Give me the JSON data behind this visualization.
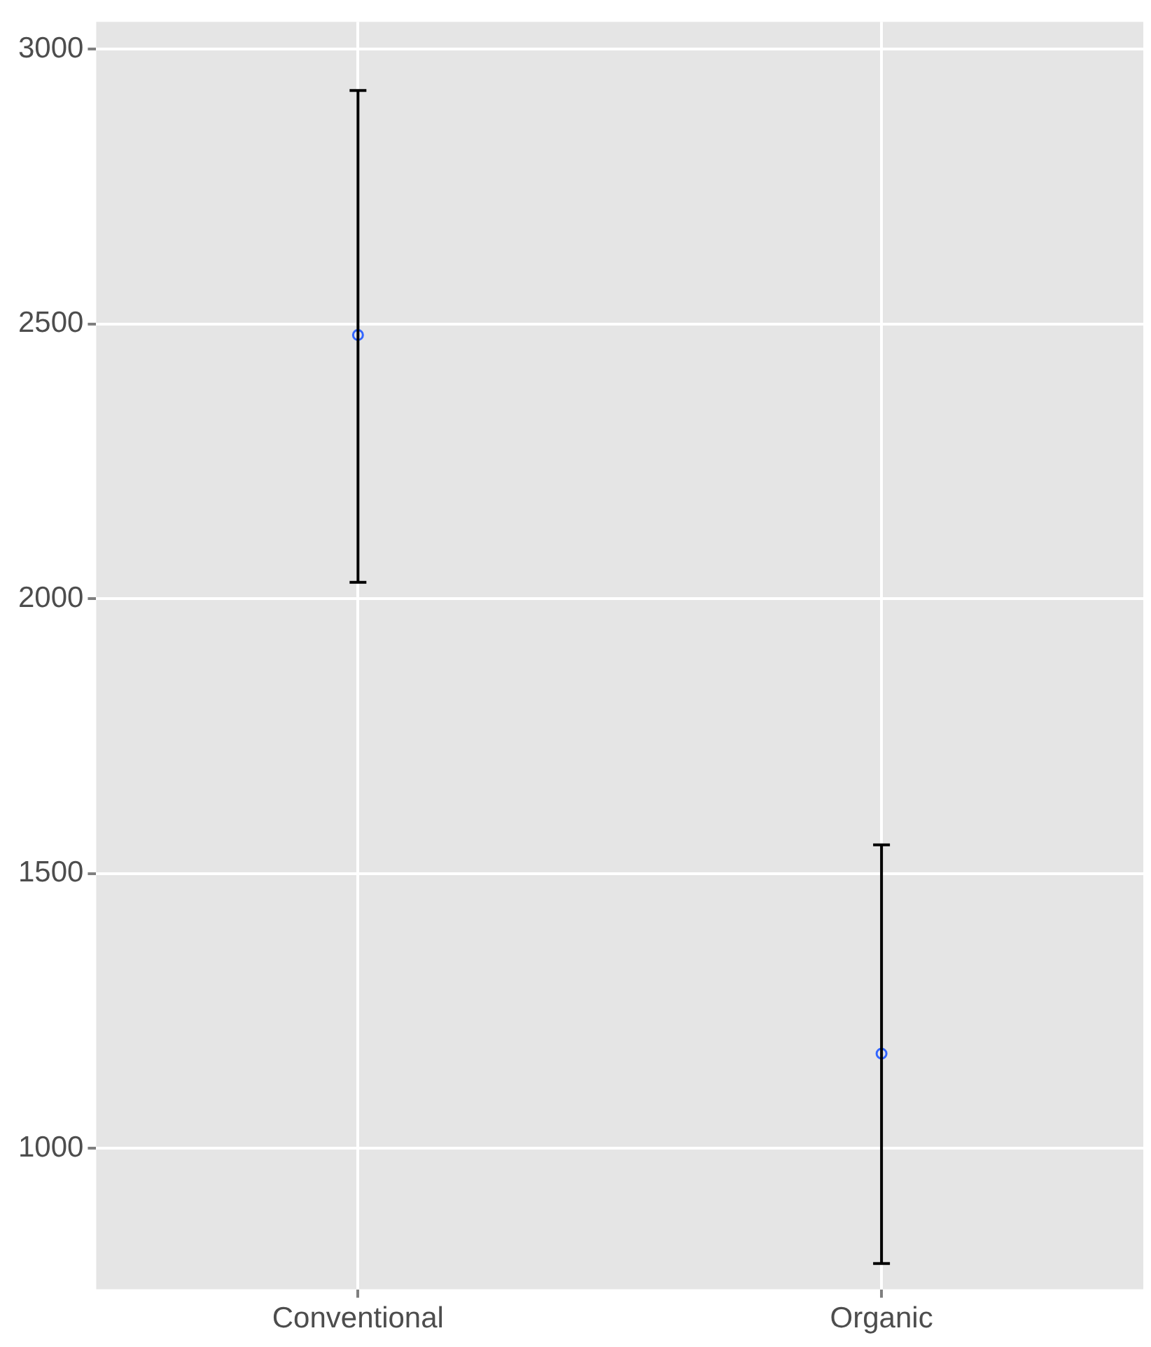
{
  "chart_data": {
    "type": "scatter",
    "categories": [
      "Conventional",
      "Organic"
    ],
    "series": [
      {
        "color": "#3366ff",
        "values": [
          2480,
          1172
        ],
        "errors": [
          [
            2030,
            2925
          ],
          [
            790,
            1552
          ]
        ]
      }
    ],
    "ylim": [
      743,
      3050
    ],
    "yticks": [
      1000,
      1500,
      2000,
      2500,
      3000
    ],
    "grid": true,
    "legend": false,
    "marker": "circle"
  }
}
